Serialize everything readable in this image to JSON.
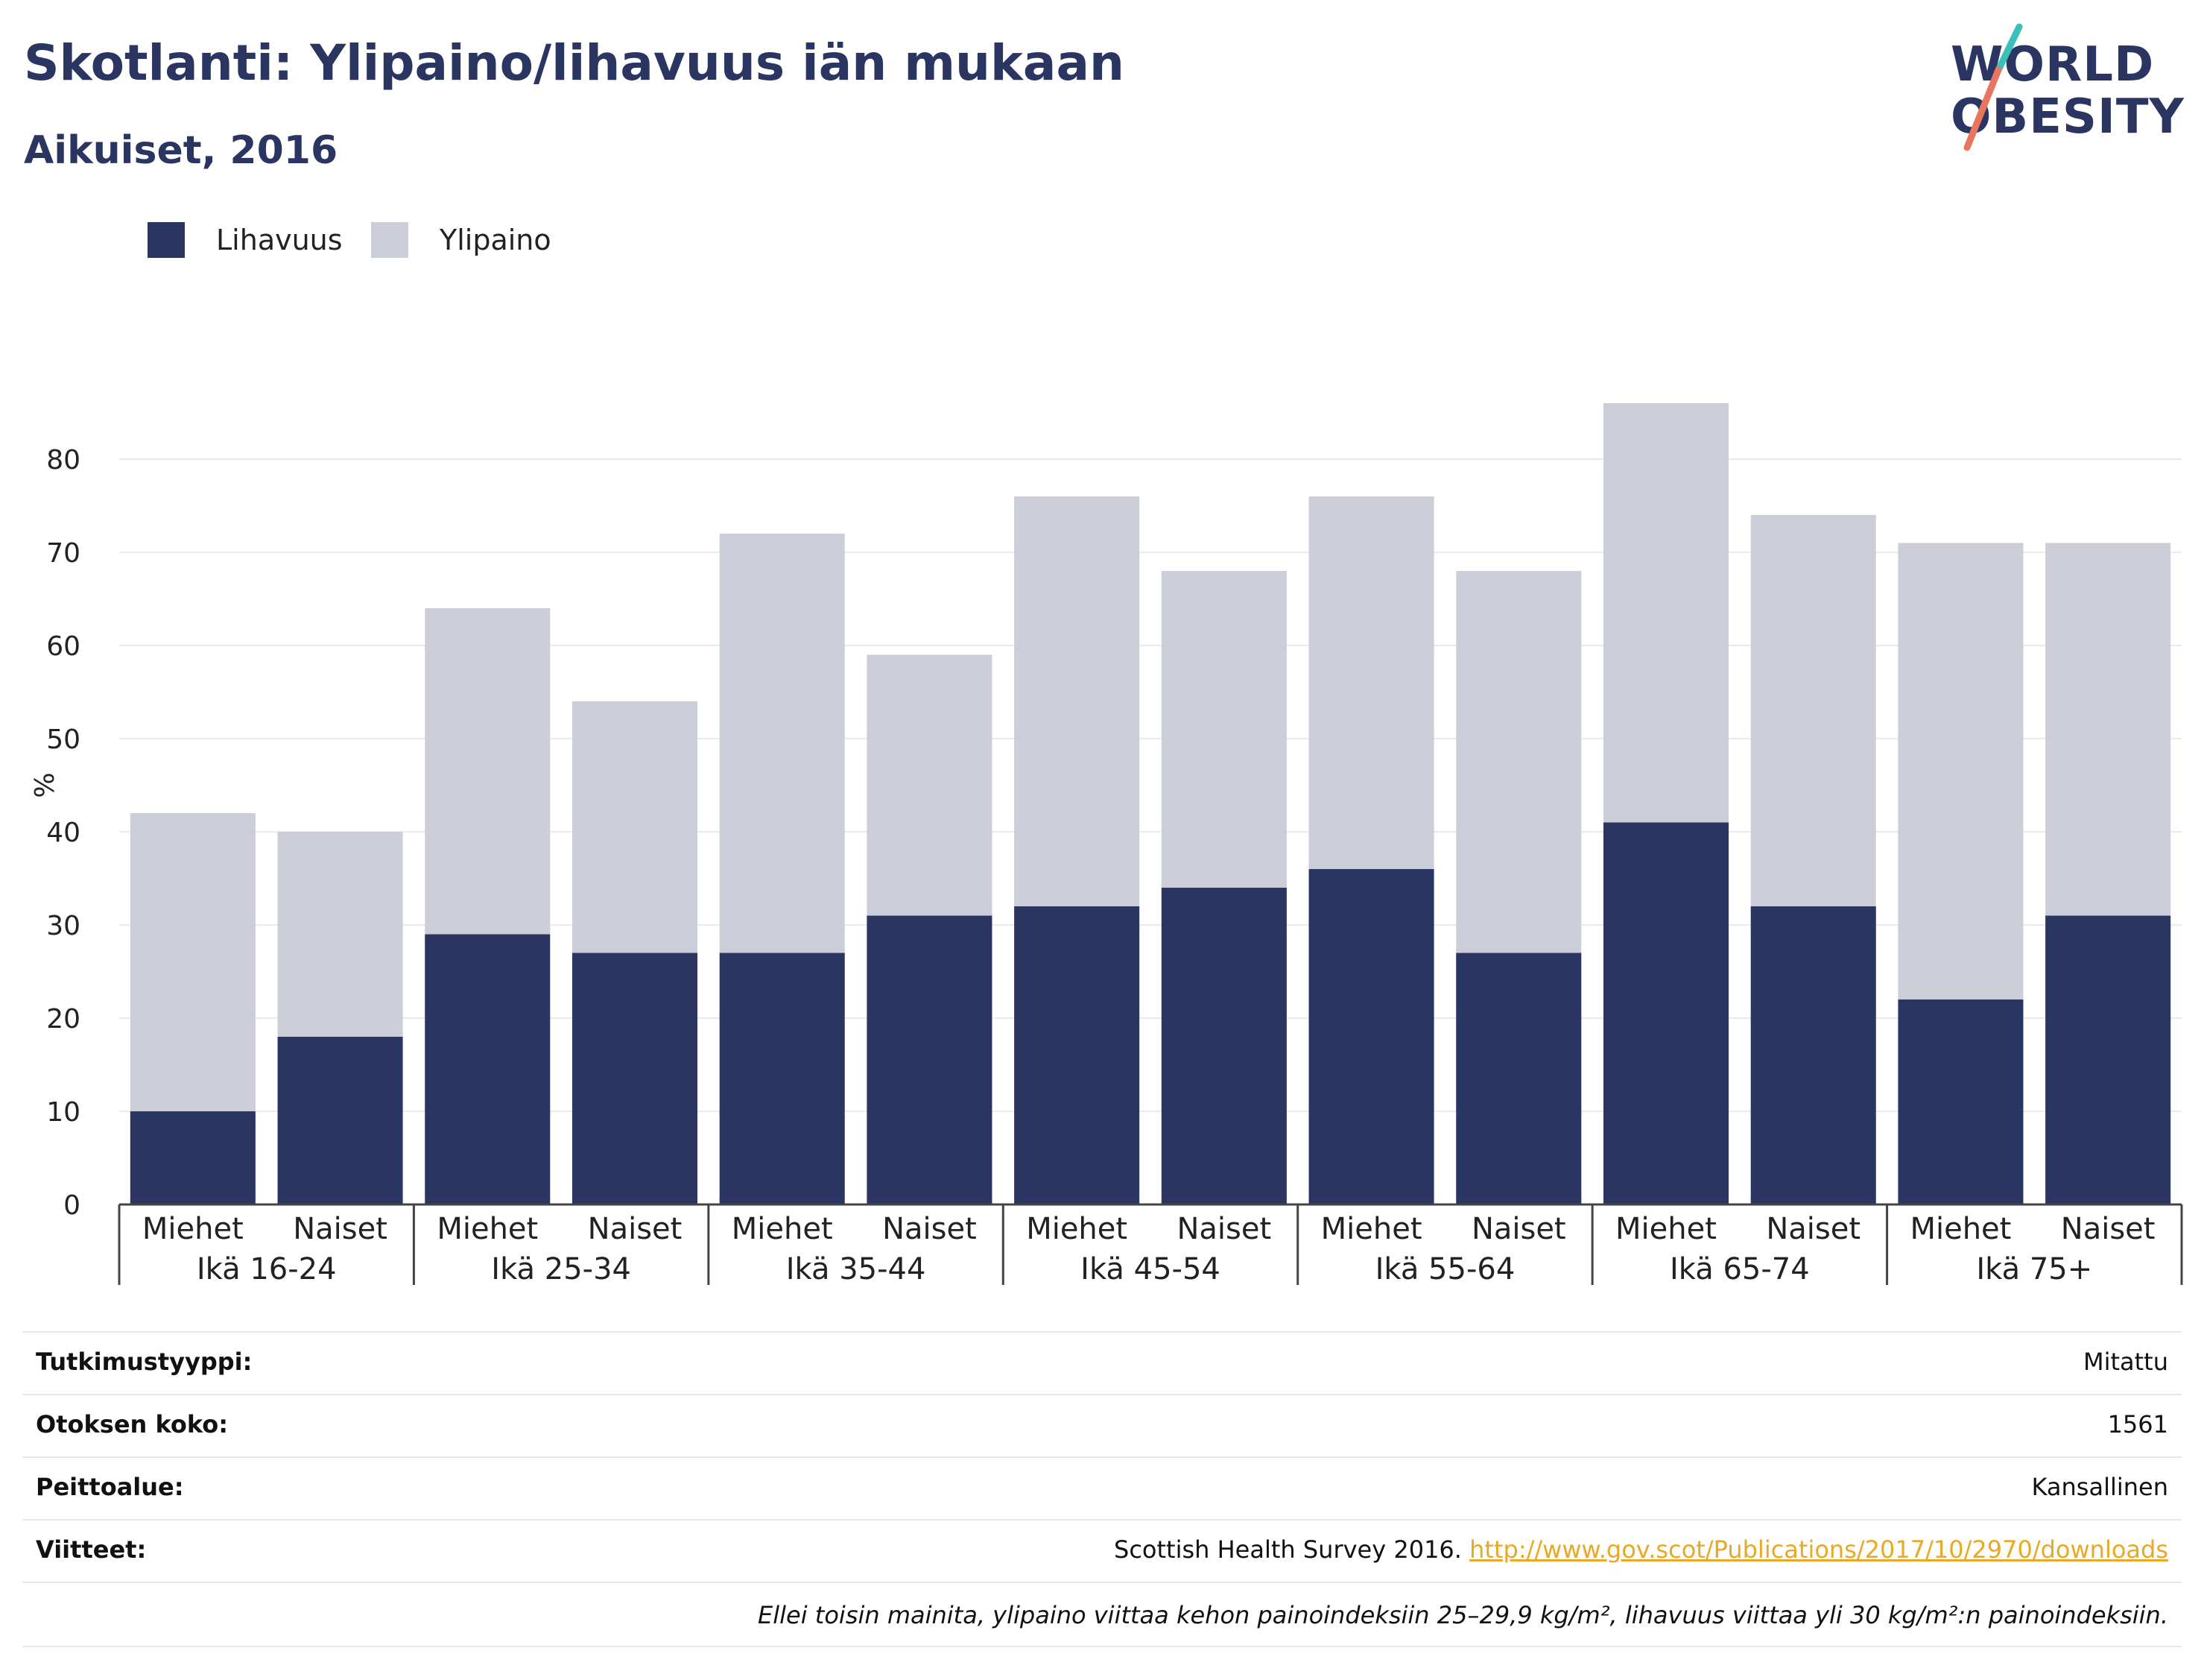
{
  "header": {
    "title": "Skotlanti: Ylipaino/lihavuus iän mukaan",
    "subtitle": "Aikuiset, 2016"
  },
  "logo": {
    "line1": "WORLD",
    "line2": "OBESITY",
    "colors": {
      "text": "#2b3561",
      "slash_top": "#3bbfb8",
      "slash_bottom": "#e8765f"
    }
  },
  "legend": [
    {
      "label": "Lihavuus",
      "color": "#2b3561"
    },
    {
      "label": "Ylipaino",
      "color": "#cbcdd9"
    }
  ],
  "chart_data": {
    "type": "bar",
    "stacked": true,
    "ylabel": "%",
    "ylim": [
      0,
      90
    ],
    "yticks": [
      0,
      10,
      20,
      30,
      40,
      50,
      60,
      70,
      80
    ],
    "grid": true,
    "legend_position": "top-left",
    "groups": [
      "Ikä 16-24",
      "Ikä 25-34",
      "Ikä 35-44",
      "Ikä 45-54",
      "Ikä 55-64",
      "Ikä 65-74",
      "Ikä 75+"
    ],
    "categories": [
      "Miehet",
      "Naiset",
      "Miehet",
      "Naiset",
      "Miehet",
      "Naiset",
      "Miehet",
      "Naiset",
      "Miehet",
      "Naiset",
      "Miehet",
      "Naiset",
      "Miehet",
      "Naiset"
    ],
    "series": [
      {
        "name": "Lihavuus",
        "color": "#2b3561",
        "values": [
          10,
          18,
          29,
          27,
          27,
          31,
          32,
          34,
          36,
          27,
          41,
          32,
          22,
          31
        ]
      },
      {
        "name": "Ylipaino",
        "color": "#cbcdd9",
        "values": [
          32,
          22,
          35,
          27,
          45,
          28,
          44,
          34,
          40,
          41,
          45,
          42,
          49,
          40
        ]
      }
    ]
  },
  "info": {
    "rows": [
      {
        "key": "Tutkimustyyppi:",
        "value": "Mitattu"
      },
      {
        "key": "Otoksen koko:",
        "value": "1561"
      },
      {
        "key": "Peittoalue:",
        "value": "Kansallinen"
      }
    ],
    "references": {
      "key": "Viitteet:",
      "text": "Scottish Health Survey 2016.",
      "link": "http://www.gov.scot/Publications/2017/10/2970/downloads"
    },
    "note": "Ellei toisin mainita, ylipaino viittaa kehon painoindeksiin 25–29,9 kg/m², lihavuus viittaa yli 30 kg/m²:n painoindeksiin."
  }
}
